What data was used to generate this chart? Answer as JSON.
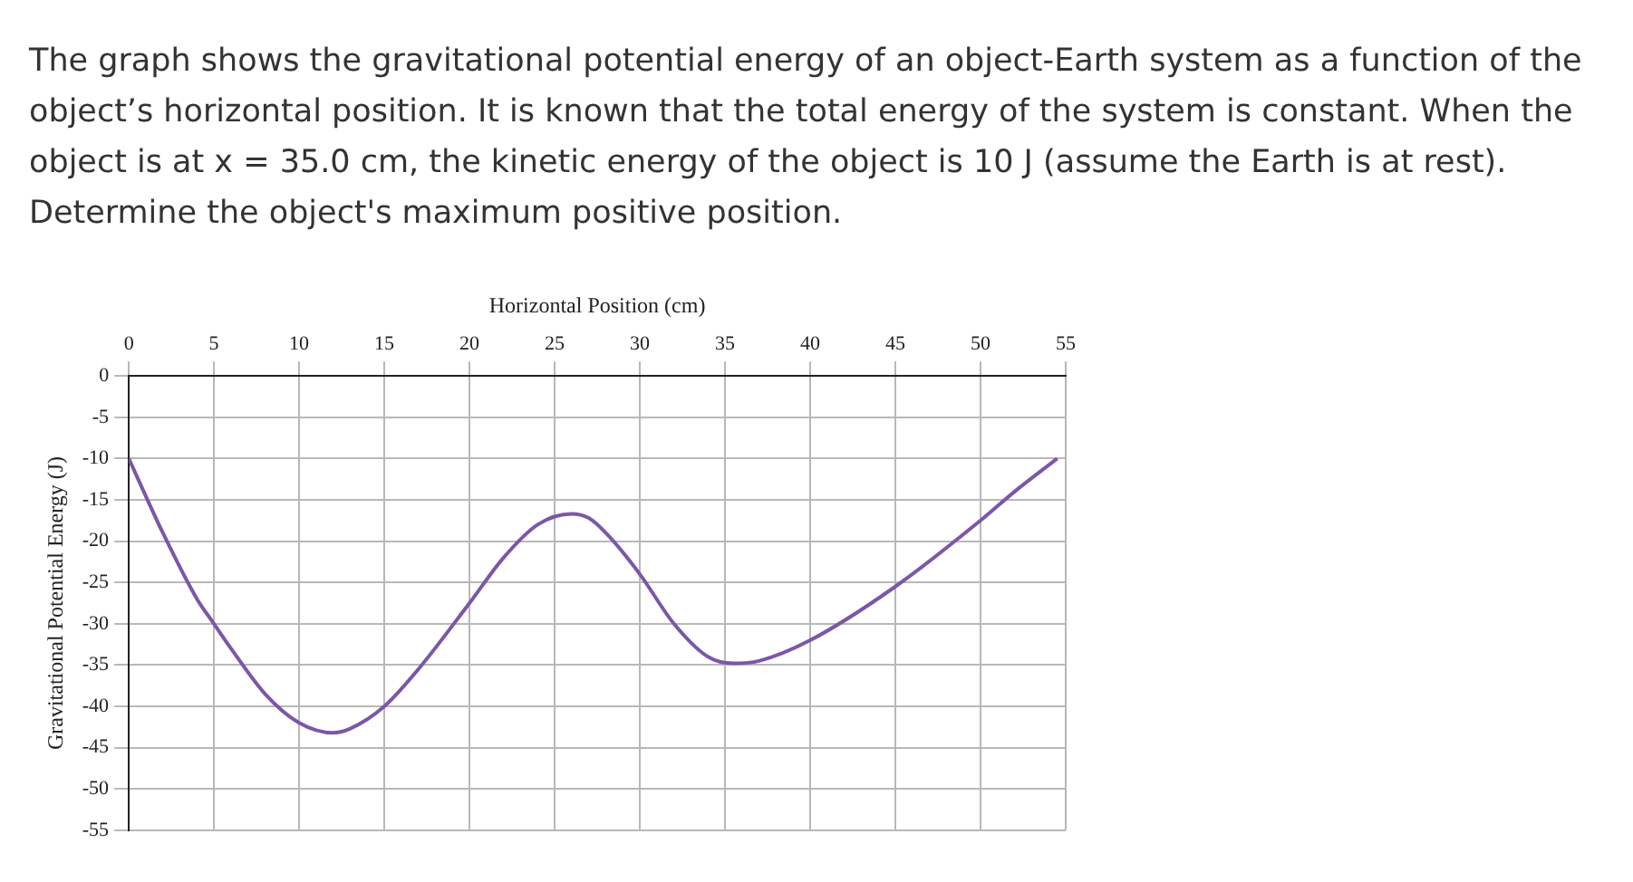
{
  "chart_data": {
    "type": "line",
    "title": "The graph shows the gravitational potential energy of an object-Earth system as a function of the object’s horizontal position.  It is known that the total energy of the system is constant.  When the object is at x = 35.0 cm, the kinetic energy of the object is 10 J (assume the Earth is at rest). Determine the object's maximum positive position.",
    "xlabel": "Horizontal Position (cm)",
    "ylabel": "Gravitational Potential Energy (J)",
    "xlim": [
      0,
      55
    ],
    "xticks": [
      0,
      5,
      10,
      15,
      20,
      25,
      30,
      35,
      40,
      45,
      50,
      55
    ],
    "ylim": [
      -55,
      0
    ],
    "yticks": [
      0,
      -5,
      -10,
      -15,
      -20,
      -25,
      -30,
      -35,
      -40,
      -45,
      -50,
      -55
    ],
    "grid": true,
    "marker": "none",
    "line_style": "solid",
    "series": [
      {
        "color": "#7b57a8",
        "x": [
          0,
          2,
          4,
          5,
          6,
          8,
          10,
          12,
          13,
          15,
          17,
          20,
          22,
          24,
          26,
          27,
          28,
          30,
          32,
          34,
          35.5,
          37,
          40,
          45,
          50,
          52,
          54.5
        ],
        "values": [
          -10,
          -19,
          -27,
          -30,
          -33,
          -38.5,
          -42,
          -43.2,
          -42.7,
          -40,
          -35.5,
          -27.5,
          -22,
          -18,
          -16.7,
          -17.2,
          -19,
          -24,
          -30,
          -34,
          -34.8,
          -34.5,
          -32,
          -25.5,
          -17.5,
          -14,
          -10
        ]
      }
    ]
  }
}
